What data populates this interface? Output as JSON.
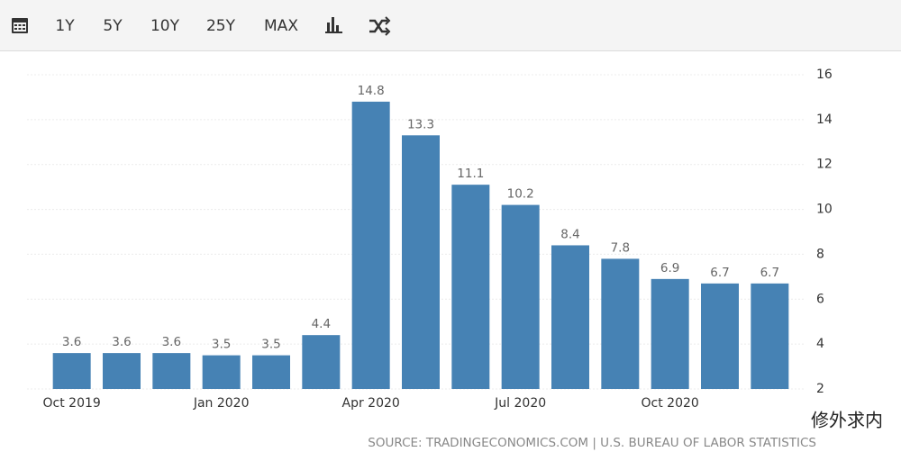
{
  "toolbar": [
    "1Y",
    "5Y",
    "10Y",
    "25Y",
    "MAX"
  ],
  "watermark": "修外求内",
  "chart_data": {
    "type": "bar",
    "categories": [
      "Oct 2019",
      null,
      null,
      "Jan 2020",
      null,
      null,
      "Apr 2020",
      null,
      null,
      "Jul 2020",
      null,
      null,
      "Oct 2020",
      null,
      null
    ],
    "values": [
      3.6,
      3.6,
      3.6,
      3.5,
      3.5,
      4.4,
      14.8,
      13.3,
      11.1,
      10.2,
      8.4,
      7.8,
      6.9,
      6.7,
      6.7
    ],
    "color": "#4682b4",
    "ylim": [
      2,
      16
    ],
    "yticks": [
      2,
      4,
      6,
      8,
      10,
      12,
      14,
      16
    ],
    "grid": true,
    "y_axis_side": "right",
    "source": "SOURCE: TRADINGECONOMICS.COM | U.S. BUREAU OF LABOR STATISTICS"
  }
}
